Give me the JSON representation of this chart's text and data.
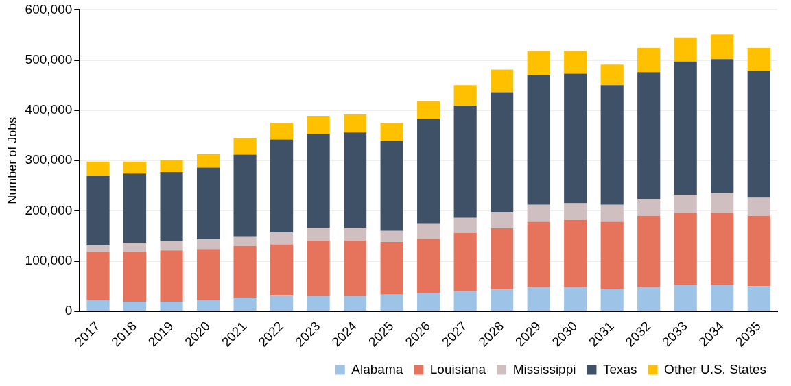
{
  "chart_data": {
    "type": "bar",
    "stacked": true,
    "ylabel": "Number of Jobs",
    "categories": [
      "2017",
      "2018",
      "2019",
      "2020",
      "2021",
      "2022",
      "2023",
      "2024",
      "2025",
      "2026",
      "2027",
      "2028",
      "2029",
      "2030",
      "2031",
      "2032",
      "2033",
      "2034",
      "2035"
    ],
    "series": [
      {
        "name": "Alabama",
        "color": "#9dc3e6",
        "values": [
          22000,
          19000,
          19000,
          22000,
          27000,
          31000,
          30000,
          30000,
          33000,
          37000,
          40000,
          43000,
          48000,
          48000,
          44000,
          48000,
          53000,
          53000,
          50000
        ]
      },
      {
        "name": "Louisiana",
        "color": "#e6735c",
        "values": [
          96000,
          99000,
          102000,
          102000,
          103000,
          102000,
          111000,
          111000,
          105000,
          107000,
          116000,
          122000,
          130000,
          134000,
          134000,
          142000,
          143000,
          143000,
          140000
        ]
      },
      {
        "name": "Mississippi",
        "color": "#d0bfc0",
        "values": [
          14000,
          18000,
          19000,
          19000,
          19000,
          24000,
          25000,
          25000,
          22000,
          31000,
          30000,
          33000,
          34000,
          33000,
          34000,
          34000,
          36000,
          39000,
          36000
        ]
      },
      {
        "name": "Texas",
        "color": "#3e5166",
        "values": [
          138000,
          138000,
          137000,
          143000,
          163000,
          185000,
          187000,
          190000,
          179000,
          208000,
          223000,
          238000,
          258000,
          258000,
          238000,
          252000,
          265000,
          267000,
          253000
        ]
      },
      {
        "name": "Other U.S. States",
        "color": "#ffc000",
        "values": [
          28000,
          24000,
          24000,
          27000,
          33000,
          33000,
          36000,
          36000,
          36000,
          35000,
          41000,
          45000,
          48000,
          45000,
          41000,
          48000,
          48000,
          49000,
          45000
        ]
      }
    ],
    "ylim": [
      0,
      600000
    ],
    "yticks": [
      {
        "value": 0,
        "label": "0"
      },
      {
        "value": 100000,
        "label": "100,000"
      },
      {
        "value": 200000,
        "label": "200,000"
      },
      {
        "value": 300000,
        "label": "300,000"
      },
      {
        "value": 400000,
        "label": "400,000"
      },
      {
        "value": 500000,
        "label": "500,000"
      },
      {
        "value": 600000,
        "label": "600,000"
      }
    ],
    "grid": "y",
    "legend": "bottom"
  }
}
